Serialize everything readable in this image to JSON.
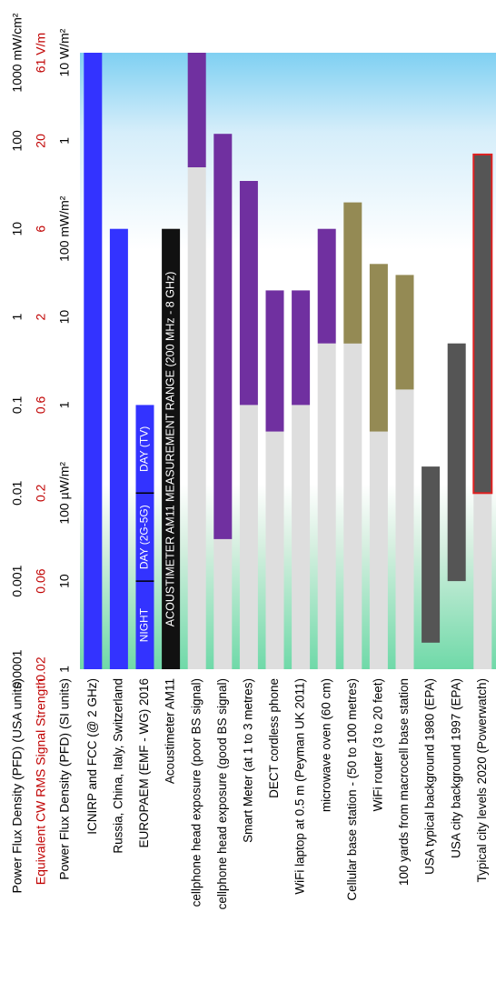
{
  "chart_data": {
    "type": "bar",
    "orientation": "horizontal-rotated",
    "scale": "log",
    "value_range_uW_per_cm2": [
      0.0001,
      1000
    ],
    "axes": [
      {
        "title": "Power Flux Density (PFD) (USA units)",
        "title_color": "#000000",
        "ticks": [
          "0.0001",
          "0.001",
          "0.01",
          "0.1",
          "1",
          "10",
          "100",
          "1000 mW/cm²"
        ],
        "tick_color": "#000000"
      },
      {
        "title": "Equivalent CW RMS Signal Strength",
        "title_color": "#c00000",
        "ticks": [
          "0.02",
          "0.06",
          "0.2",
          "0.6",
          "2",
          "6",
          "20",
          "61 V/m"
        ],
        "tick_color": "#c00000"
      },
      {
        "title": "Power Flux Density (PFD)  (SI units)",
        "title_color": "#000000",
        "ticks": [
          "1",
          "10",
          "100 µW/m²",
          "1",
          "10",
          "100 mW/m²",
          "1",
          "10 W/m²"
        ],
        "tick_color": "#000000"
      }
    ],
    "categories": [
      "ICNIRP and FCC (@ 2 GHz)",
      "Russia, China, Italy, Switzerland",
      "EUROPAEM (EMF - WG)  2016",
      "Acoustimeter AM11",
      "cellphone head exposure (poor BS signal)",
      "cellphone head exposure (good BS signal)",
      "Smart Meter (at 1 to 3 metres)",
      "DECT cordless phone",
      "WiFi laptop at 0.5 m (Peyman UK 2011)",
      "microwave oven (60 cm)",
      "Cellular base station - (50 to 100 metres)",
      "WiFi router (3 to 20  feet)",
      "100 yards from macrocell base station",
      "USA typical background 1980 (EPA)",
      "USA city background 1997 (EPA)",
      "Typical city levels 2020 (Powerwatch)"
    ],
    "bars": [
      {
        "category": 0,
        "from": 0.0001,
        "to": 1000,
        "color": "#3333ff"
      },
      {
        "category": 1,
        "from": 0.0001,
        "to": 10,
        "color": "#3333ff"
      },
      {
        "category": 2,
        "from": 0.0001,
        "to": 0.1,
        "color": "#3333ff"
      },
      {
        "category": 3,
        "from": 0.0001,
        "to": 10,
        "color": "#111111"
      },
      {
        "category": 4,
        "from": 0.0001,
        "to": 50,
        "color": "#dedede"
      },
      {
        "category": 4,
        "from": 50,
        "to": 1000,
        "color": "#7030a0"
      },
      {
        "category": 5,
        "from": 0.0001,
        "to": 0.003,
        "color": "#dedede"
      },
      {
        "category": 5,
        "from": 0.003,
        "to": 120,
        "color": "#7030a0"
      },
      {
        "category": 6,
        "from": 0.0001,
        "to": 0.1,
        "color": "#dedede"
      },
      {
        "category": 6,
        "from": 0.1,
        "to": 35,
        "color": "#7030a0"
      },
      {
        "category": 7,
        "from": 0.0001,
        "to": 0.05,
        "color": "#dedede"
      },
      {
        "category": 7,
        "from": 0.05,
        "to": 2,
        "color": "#7030a0"
      },
      {
        "category": 8,
        "from": 0.0001,
        "to": 0.1,
        "color": "#dedede"
      },
      {
        "category": 8,
        "from": 0.1,
        "to": 2,
        "color": "#7030a0"
      },
      {
        "category": 9,
        "from": 0.0001,
        "to": 0.5,
        "color": "#dedede"
      },
      {
        "category": 9,
        "from": 0.5,
        "to": 10,
        "color": "#7030a0"
      },
      {
        "category": 10,
        "from": 0.0001,
        "to": 0.5,
        "color": "#dedede"
      },
      {
        "category": 10,
        "from": 0.5,
        "to": 20,
        "color": "#948a54"
      },
      {
        "category": 11,
        "from": 0.0001,
        "to": 0.05,
        "color": "#dedede"
      },
      {
        "category": 11,
        "from": 0.05,
        "to": 4,
        "color": "#948a54"
      },
      {
        "category": 12,
        "from": 0.0001,
        "to": 0.15,
        "color": "#dedede"
      },
      {
        "category": 12,
        "from": 0.15,
        "to": 3,
        "color": "#948a54"
      },
      {
        "category": 13,
        "from": 0.0002,
        "to": 0.02,
        "color": "#555555"
      },
      {
        "category": 14,
        "from": 0.001,
        "to": 0.5,
        "color": "#555555"
      },
      {
        "category": 15,
        "from": 0.0001,
        "to": 0.01,
        "color": "#dedede"
      },
      {
        "category": 15,
        "from": 0.01,
        "to": 70,
        "color": "#555555",
        "outline": "#e02020"
      }
    ],
    "acoustimeter_segments": [
      "NIGHT",
      "DAY (2G-5G)",
      "DAY (TV)"
    ],
    "acoustimeter_range_label": "ACOUSTIMETER AM11 MEASUREMENT RANGE (200 MHz - 8 GHz)"
  }
}
